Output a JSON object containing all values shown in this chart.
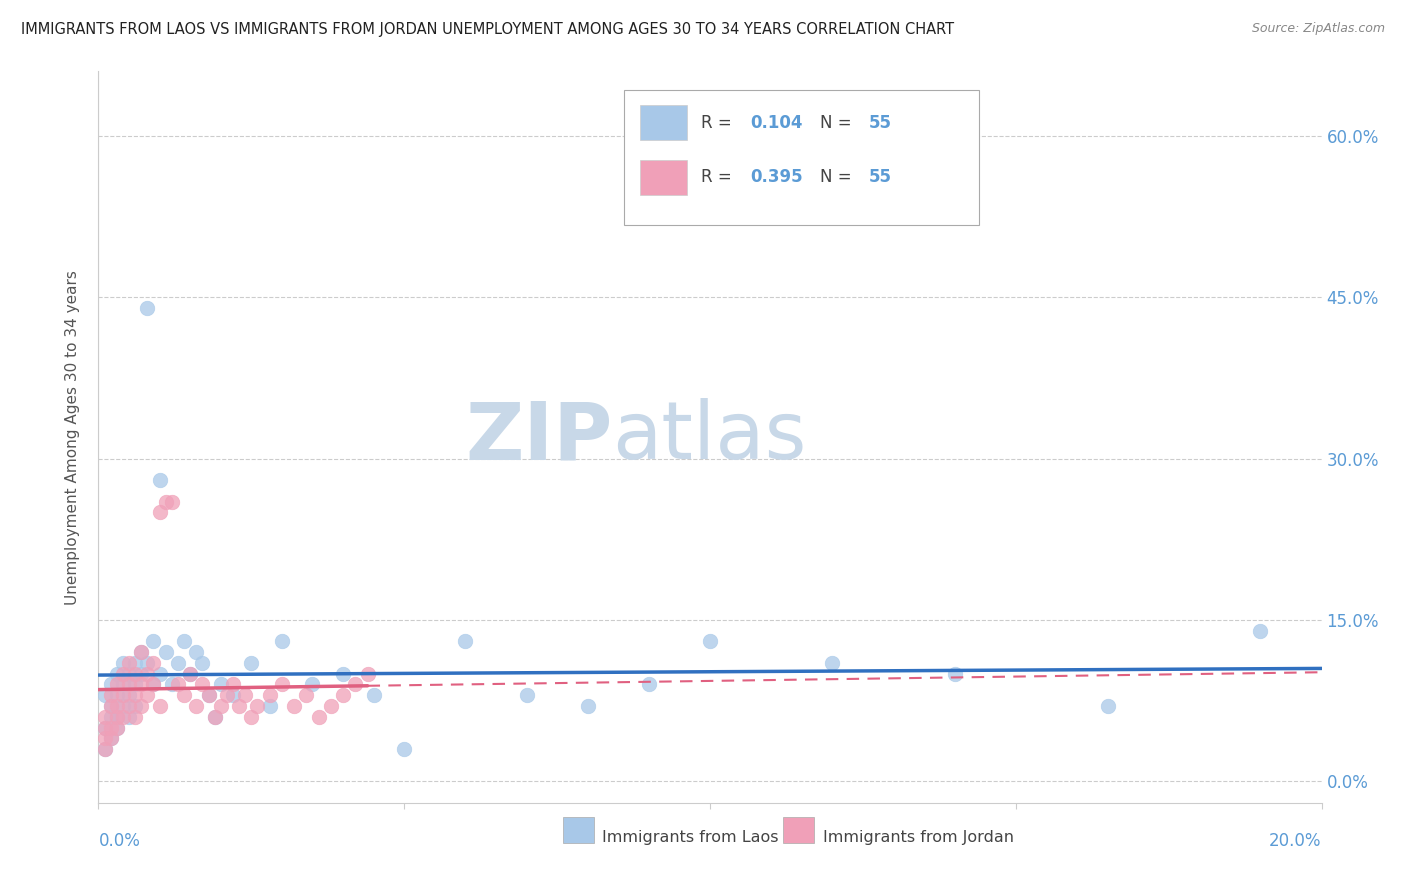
{
  "title": "IMMIGRANTS FROM LAOS VS IMMIGRANTS FROM JORDAN UNEMPLOYMENT AMONG AGES 30 TO 34 YEARS CORRELATION CHART",
  "source": "Source: ZipAtlas.com",
  "ylabel": "Unemployment Among Ages 30 to 34 years",
  "ytick_labels": [
    "60.0%",
    "45.0%",
    "30.0%",
    "15.0%",
    "0.0%"
  ],
  "ytick_values": [
    0.6,
    0.45,
    0.3,
    0.15,
    0.0
  ],
  "xrange": [
    0.0,
    0.2
  ],
  "yrange": [
    -0.02,
    0.66
  ],
  "laos_R": 0.104,
  "laos_N": 55,
  "jordan_R": 0.395,
  "jordan_N": 55,
  "laos_color": "#a8c8e8",
  "jordan_color": "#f0a0b8",
  "laos_line_color": "#3070c0",
  "jordan_line_color": "#e06080",
  "watermark_zip": "ZIP",
  "watermark_atlas": "atlas",
  "watermark_color": "#c8d8e8",
  "legend_box_color": "#aaaaaa",
  "title_color": "#222222",
  "source_color": "#888888",
  "axis_label_color": "#5b9bd5",
  "ylabel_color": "#555555",
  "laos_x": [
    0.001,
    0.001,
    0.001,
    0.002,
    0.002,
    0.002,
    0.002,
    0.003,
    0.003,
    0.003,
    0.003,
    0.004,
    0.004,
    0.004,
    0.005,
    0.005,
    0.005,
    0.006,
    0.006,
    0.006,
    0.007,
    0.007,
    0.008,
    0.008,
    0.009,
    0.009,
    0.01,
    0.01,
    0.011,
    0.012,
    0.013,
    0.014,
    0.015,
    0.016,
    0.017,
    0.018,
    0.019,
    0.02,
    0.022,
    0.025,
    0.028,
    0.03,
    0.035,
    0.04,
    0.045,
    0.05,
    0.06,
    0.07,
    0.08,
    0.09,
    0.1,
    0.12,
    0.14,
    0.165,
    0.19
  ],
  "laos_y": [
    0.05,
    0.08,
    0.03,
    0.06,
    0.09,
    0.04,
    0.07,
    0.05,
    0.1,
    0.08,
    0.06,
    0.07,
    0.11,
    0.09,
    0.06,
    0.1,
    0.08,
    0.09,
    0.11,
    0.07,
    0.1,
    0.12,
    0.44,
    0.11,
    0.09,
    0.13,
    0.28,
    0.1,
    0.12,
    0.09,
    0.11,
    0.13,
    0.1,
    0.12,
    0.11,
    0.08,
    0.06,
    0.09,
    0.08,
    0.11,
    0.07,
    0.13,
    0.09,
    0.1,
    0.08,
    0.03,
    0.13,
    0.08,
    0.07,
    0.09,
    0.13,
    0.11,
    0.1,
    0.07,
    0.14
  ],
  "jordan_x": [
    0.001,
    0.001,
    0.001,
    0.001,
    0.002,
    0.002,
    0.002,
    0.002,
    0.003,
    0.003,
    0.003,
    0.003,
    0.004,
    0.004,
    0.004,
    0.005,
    0.005,
    0.005,
    0.006,
    0.006,
    0.006,
    0.007,
    0.007,
    0.007,
    0.008,
    0.008,
    0.009,
    0.009,
    0.01,
    0.01,
    0.011,
    0.012,
    0.013,
    0.014,
    0.015,
    0.016,
    0.017,
    0.018,
    0.019,
    0.02,
    0.021,
    0.022,
    0.023,
    0.024,
    0.025,
    0.026,
    0.028,
    0.03,
    0.032,
    0.034,
    0.036,
    0.038,
    0.04,
    0.042,
    0.044
  ],
  "jordan_y": [
    0.04,
    0.06,
    0.03,
    0.05,
    0.07,
    0.05,
    0.08,
    0.04,
    0.06,
    0.09,
    0.05,
    0.07,
    0.08,
    0.1,
    0.06,
    0.09,
    0.07,
    0.11,
    0.08,
    0.1,
    0.06,
    0.09,
    0.12,
    0.07,
    0.1,
    0.08,
    0.11,
    0.09,
    0.25,
    0.07,
    0.26,
    0.26,
    0.09,
    0.08,
    0.1,
    0.07,
    0.09,
    0.08,
    0.06,
    0.07,
    0.08,
    0.09,
    0.07,
    0.08,
    0.06,
    0.07,
    0.08,
    0.09,
    0.07,
    0.08,
    0.06,
    0.07,
    0.08,
    0.09,
    0.1
  ]
}
